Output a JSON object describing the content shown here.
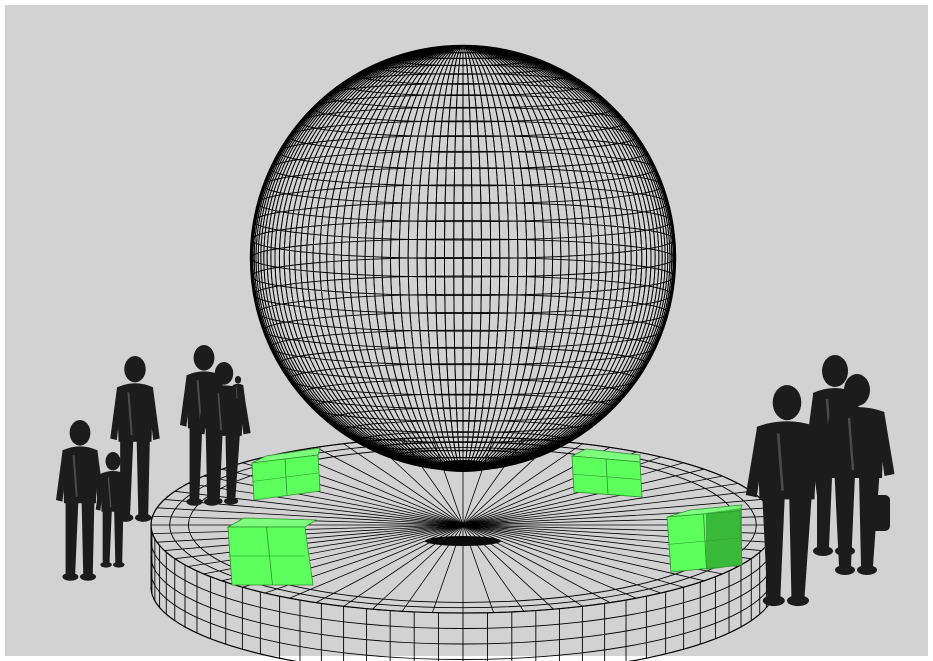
{
  "scene": {
    "background_color": "#d2d2d2",
    "border_color": "#ffffff",
    "wire_color": "#000000",
    "box_color": "#5cff5c",
    "box_edge_color": "#2f8f2f",
    "figure_color": "#1c1c1c",
    "sphere": {
      "meridians": 72,
      "parallels": 36
    },
    "platform": {
      "radial_lines": 64,
      "rings": 3,
      "wall_rows": 4
    },
    "boxes": 4,
    "people_groups": [
      "left-group",
      "center-left-group",
      "right-group"
    ]
  }
}
